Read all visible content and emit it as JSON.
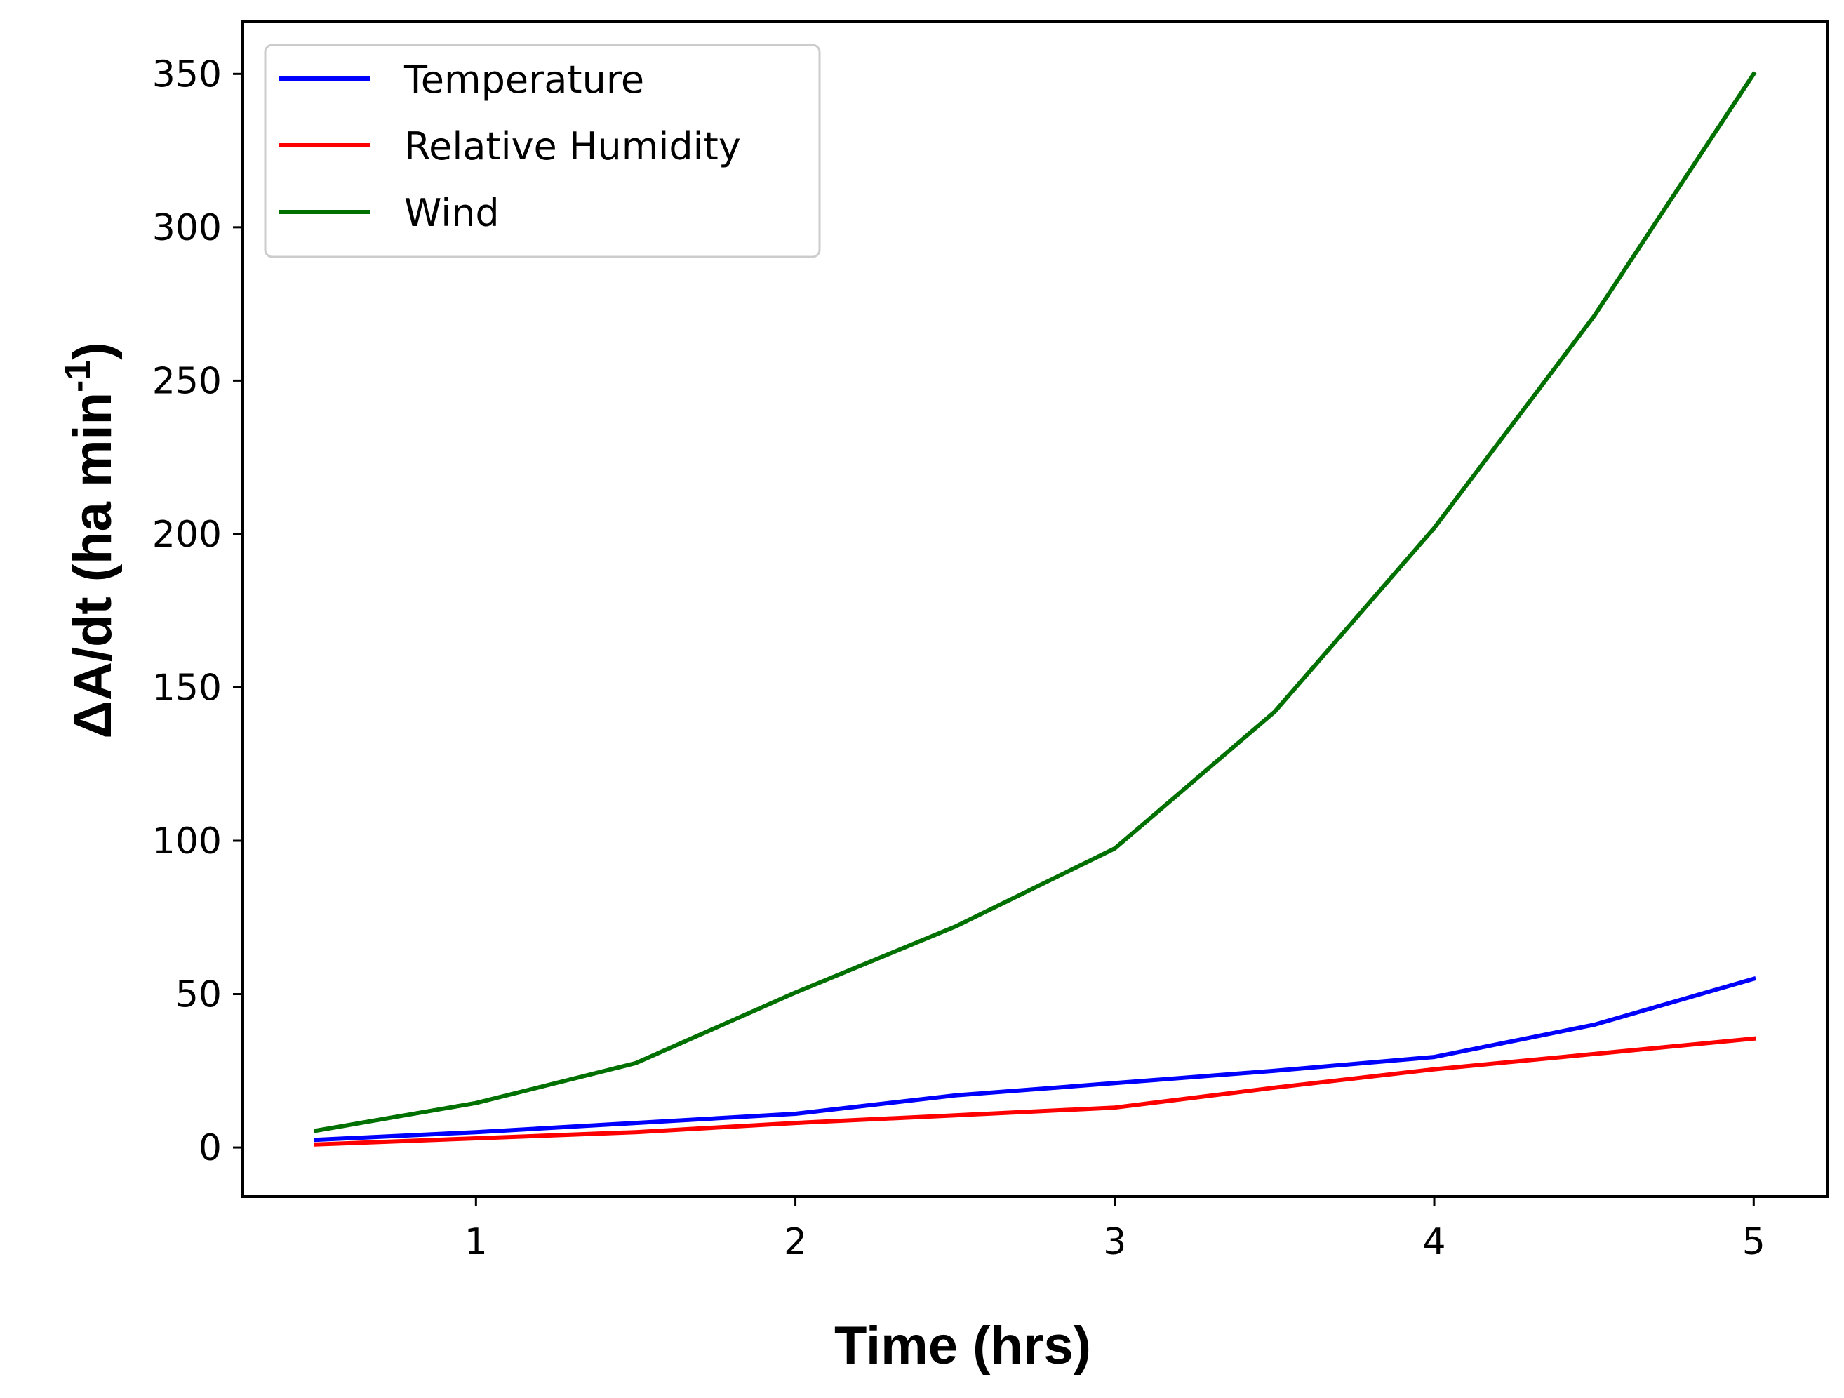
{
  "chart_data": {
    "type": "line",
    "title": "",
    "xlabel": "Time (hrs)",
    "ylabel_main": "ΔA/dt (ha min",
    "ylabel_sup": "-1",
    "ylabel_close": ")",
    "xlim": [
      0.27,
      5.23
    ],
    "ylim": [
      -16,
      367
    ],
    "x_ticks": [
      1,
      2,
      3,
      4,
      5
    ],
    "y_ticks": [
      0,
      50,
      100,
      150,
      200,
      250,
      300,
      350
    ],
    "x": [
      0.5,
      1.0,
      1.5,
      2.0,
      2.5,
      3.0,
      3.5,
      4.0,
      4.5,
      5.0
    ],
    "series": [
      {
        "name": "Temperature",
        "color": "#0000ff",
        "values": [
          2.5,
          5,
          8,
          11,
          17,
          21,
          25,
          29.5,
          40,
          55
        ]
      },
      {
        "name": "Relative Humidity",
        "color": "#ff0000",
        "values": [
          1,
          3,
          5,
          8,
          10.5,
          13,
          19.5,
          25.5,
          30.5,
          35.5
        ]
      },
      {
        "name": "Wind",
        "color": "#007100",
        "values": [
          5.5,
          14.5,
          27.5,
          50.5,
          72,
          97.5,
          142,
          202,
          271,
          350
        ]
      }
    ],
    "legend_position": "top-left",
    "grid": false
  }
}
